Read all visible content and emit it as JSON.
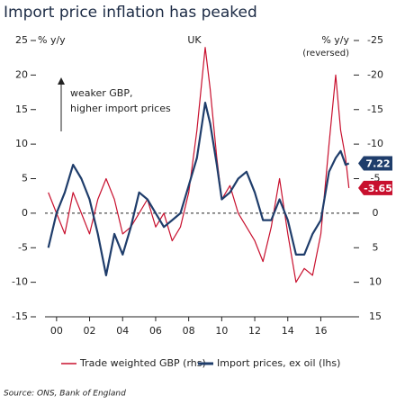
{
  "chart_data": {
    "type": "line",
    "title": "Import price inflation has peaked",
    "y_label": "% y/y",
    "y2_label": "% y/y",
    "y2_note": "(reversed)",
    "annotations": [
      "UK",
      "weaker GBP,",
      "higher import prices"
    ],
    "source": "Source: ONS, Bank of England",
    "x": [
      1999.5,
      2000,
      2000.5,
      2001,
      2001.5,
      2002,
      2002.5,
      2003,
      2003.5,
      2004,
      2004.5,
      2005,
      2005.5,
      2006,
      2006.5,
      2007,
      2007.5,
      2008,
      2008.5,
      2009,
      2009.3,
      2009.7,
      2010,
      2010.5,
      2011,
      2011.5,
      2012,
      2012.5,
      2013,
      2013.5,
      2014,
      2014.5,
      2015,
      2015.5,
      2016,
      2016.5,
      2016.9,
      2017.2,
      2017.5,
      2017.7
    ],
    "xlim": [
      1999.3,
      2018.1
    ],
    "xticks": [
      {
        "value": 2000,
        "label": "00"
      },
      {
        "value": 2002,
        "label": "02"
      },
      {
        "value": 2004,
        "label": "04"
      },
      {
        "value": 2006,
        "label": "06"
      },
      {
        "value": 2008,
        "label": "08"
      },
      {
        "value": 2010,
        "label": "10"
      },
      {
        "value": 2012,
        "label": "12"
      },
      {
        "value": 2014,
        "label": "14"
      },
      {
        "value": 2016,
        "label": "16"
      }
    ],
    "ylim": [
      -15,
      25
    ],
    "yticks": [
      25,
      20,
      15,
      10,
      5,
      0,
      -5,
      -10,
      -15
    ],
    "y2lim": [
      -25,
      15
    ],
    "y2_reversed": true,
    "y2ticks": [
      -25,
      -20,
      -15,
      -10,
      -5,
      0,
      5,
      10,
      15
    ],
    "series": [
      {
        "name": "Trade weighted GBP (rhs)",
        "color": "#c8102e",
        "axis": "y2",
        "values": [
          -3,
          0,
          3,
          -3,
          0,
          3,
          -2,
          -5,
          -2,
          3,
          2,
          0,
          -2,
          2,
          0,
          4,
          2,
          -3,
          -12,
          -24,
          -18,
          -8,
          -2,
          -4,
          0,
          2,
          4,
          7,
          2,
          -5,
          3,
          10,
          8,
          9,
          3,
          -10,
          -20,
          -12,
          -8,
          -3.65
        ]
      },
      {
        "name": "Import prices, ex oil (lhs)",
        "color": "#1f3d6b",
        "values": [
          -5,
          0,
          3,
          7,
          5,
          2,
          -3,
          -9,
          -3,
          -6,
          -2,
          3,
          2,
          0,
          -2,
          -1,
          0,
          4,
          8,
          16,
          13,
          7,
          2,
          3,
          5,
          6,
          3,
          -1,
          -1,
          2,
          -1,
          -6,
          -6,
          -3,
          -1,
          6,
          8,
          9,
          7,
          7.22
        ]
      }
    ]
  }
}
